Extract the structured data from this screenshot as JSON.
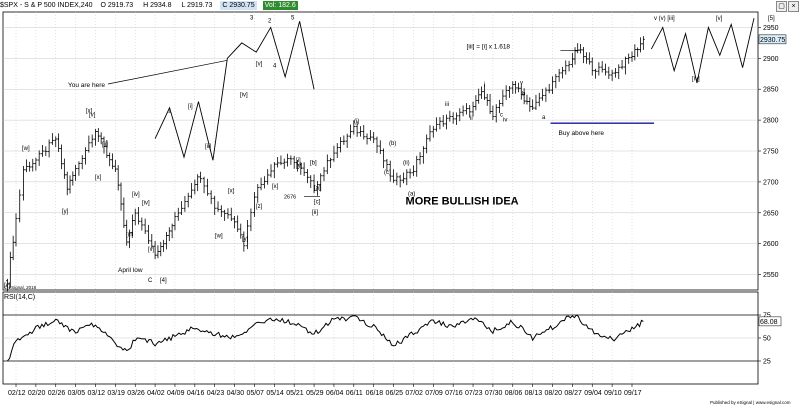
{
  "header": {
    "symbol": "$SPX - S & P 500 INDEX,240",
    "open": "O 2919.73",
    "high": "H 2934.8",
    "low": "L 2919.73",
    "close": "C 2930.75",
    "volume": "Vol: 182.6",
    "close_icon": "close-icon",
    "collapse_icon": "collapse-icon"
  },
  "colors": {
    "bar": "#000000",
    "buy_line": "#1a1aa0",
    "close_box": "#cfe3f5",
    "vol_box": "#2e8b2e",
    "last_price_box": "#d9eefc",
    "grid": "#c8c8c8"
  },
  "chart_data": [
    {
      "type": "ohlc",
      "title": "$SPX - S & P 500 INDEX,240",
      "x_tick_labels": [
        "02/12",
        "02/20",
        "02/26",
        "03/05",
        "03/12",
        "03/19",
        "03/26",
        "04/02",
        "04/09",
        "04/16",
        "04/23",
        "04/30",
        "05/07",
        "05/14",
        "05/21",
        "05/29",
        "06/04",
        "06/11",
        "06/18",
        "06/25",
        "07/02",
        "07/09",
        "07/16",
        "07/23",
        "07/30",
        "08/06",
        "08/13",
        "08/20",
        "08/27",
        "09/04",
        "09/10",
        "09/17"
      ],
      "y_ticks": [
        2550,
        2600,
        2650,
        2700,
        2750,
        2800,
        2850,
        2900,
        2950
      ],
      "ylim": [
        2525,
        2975
      ],
      "last_price": "2930.75",
      "series_close_approx": [
        {
          "date": "02/09",
          "value": 2540
        },
        {
          "date": "02/12",
          "value": 2640
        },
        {
          "date": "02/15",
          "value": 2720
        },
        {
          "date": "02/20",
          "value": 2735
        },
        {
          "date": "02/26",
          "value": 2770
        },
        {
          "date": "03/01",
          "value": 2690
        },
        {
          "date": "03/05",
          "value": 2720
        },
        {
          "date": "03/12",
          "value": 2785
        },
        {
          "date": "03/16",
          "value": 2745
        },
        {
          "date": "03/19",
          "value": 2720
        },
        {
          "date": "03/23",
          "value": 2600
        },
        {
          "date": "03/26",
          "value": 2650
        },
        {
          "date": "04/02",
          "value": 2585
        },
        {
          "date": "04/06",
          "value": 2610
        },
        {
          "date": "04/09",
          "value": 2640
        },
        {
          "date": "04/16",
          "value": 2700
        },
        {
          "date": "04/18",
          "value": 2710
        },
        {
          "date": "04/23",
          "value": 2660
        },
        {
          "date": "04/30",
          "value": 2640
        },
        {
          "date": "05/03",
          "value": 2600
        },
        {
          "date": "05/07",
          "value": 2680
        },
        {
          "date": "05/14",
          "value": 2730
        },
        {
          "date": "05/21",
          "value": 2735
        },
        {
          "date": "05/29",
          "value": 2690
        },
        {
          "date": "06/04",
          "value": 2750
        },
        {
          "date": "06/11",
          "value": 2785
        },
        {
          "date": "06/18",
          "value": 2770
        },
        {
          "date": "06/25",
          "value": 2700
        },
        {
          "date": "07/02",
          "value": 2720
        },
        {
          "date": "07/09",
          "value": 2790
        },
        {
          "date": "07/16",
          "value": 2805
        },
        {
          "date": "07/23",
          "value": 2820
        },
        {
          "date": "07/26",
          "value": 2845
        },
        {
          "date": "07/30",
          "value": 2810
        },
        {
          "date": "08/06",
          "value": 2860
        },
        {
          "date": "08/10",
          "value": 2835
        },
        {
          "date": "08/13",
          "value": 2820
        },
        {
          "date": "08/20",
          "value": 2860
        },
        {
          "date": "08/27",
          "value": 2900
        },
        {
          "date": "08/29",
          "value": 2915
        },
        {
          "date": "09/04",
          "value": 2885
        },
        {
          "date": "09/10",
          "value": 2875
        },
        {
          "date": "09/17",
          "value": 2905
        },
        {
          "date": "09/21",
          "value": 2930
        }
      ],
      "annotations": {
        "main_text": "MORE BULLISH IDEA",
        "you_are_here": "You are here",
        "buy_above_here": "Buy above here",
        "fib_text": "[iii] = [i] x 1.618",
        "april_low": "April low",
        "value_2676": "2676",
        "wave_labels": [
          "[v]",
          "[w]",
          "[y]",
          "[x]",
          "[x]",
          "[ii]",
          "[iii]",
          "[iv]",
          "[iv]",
          "[v]",
          "[v]",
          "C",
          "[4]",
          "[iv]",
          "[v]",
          "[i]",
          "[ii]",
          "[w]",
          "[x]",
          "[y]",
          "[z]",
          "[x]",
          "[y]",
          "2",
          "1",
          "[a]",
          "[b]",
          "[c]",
          "[i]",
          "[ii]",
          "(i)",
          "(ii)",
          "(a)",
          "(b)",
          "(c)",
          "i",
          "ii",
          "iii",
          "iv",
          "v",
          "a",
          "b",
          "c",
          "v (v) [iii]",
          "[iv]",
          "[v]",
          "3",
          "4",
          "5",
          "[5]"
        ]
      }
    },
    {
      "type": "line",
      "title": "RSI(14,C)",
      "y_ticks": [
        25,
        50,
        75
      ],
      "ylim": [
        0,
        100
      ],
      "last_value": "68.08",
      "series_approx": [
        {
          "date": "02/09",
          "value": 25
        },
        {
          "date": "02/12",
          "value": 48
        },
        {
          "date": "02/20",
          "value": 60
        },
        {
          "date": "02/26",
          "value": 68
        },
        {
          "date": "03/05",
          "value": 56
        },
        {
          "date": "03/12",
          "value": 66
        },
        {
          "date": "03/19",
          "value": 45
        },
        {
          "date": "03/23",
          "value": 34
        },
        {
          "date": "03/26",
          "value": 50
        },
        {
          "date": "04/02",
          "value": 44
        },
        {
          "date": "04/09",
          "value": 52
        },
        {
          "date": "04/16",
          "value": 62
        },
        {
          "date": "04/23",
          "value": 54
        },
        {
          "date": "04/30",
          "value": 50
        },
        {
          "date": "05/07",
          "value": 65
        },
        {
          "date": "05/14",
          "value": 70
        },
        {
          "date": "05/21",
          "value": 66
        },
        {
          "date": "05/29",
          "value": 54
        },
        {
          "date": "06/04",
          "value": 70
        },
        {
          "date": "06/11",
          "value": 72
        },
        {
          "date": "06/18",
          "value": 62
        },
        {
          "date": "06/25",
          "value": 42
        },
        {
          "date": "07/02",
          "value": 55
        },
        {
          "date": "07/09",
          "value": 68
        },
        {
          "date": "07/16",
          "value": 62
        },
        {
          "date": "07/23",
          "value": 72
        },
        {
          "date": "07/30",
          "value": 58
        },
        {
          "date": "08/06",
          "value": 68
        },
        {
          "date": "08/13",
          "value": 50
        },
        {
          "date": "08/20",
          "value": 62
        },
        {
          "date": "08/27",
          "value": 76
        },
        {
          "date": "09/04",
          "value": 58
        },
        {
          "date": "09/10",
          "value": 48
        },
        {
          "date": "09/17",
          "value": 60
        },
        {
          "date": "09/21",
          "value": 68
        }
      ]
    }
  ],
  "projection_path": {
    "left_points": [
      2770,
      2820,
      2740,
      2830,
      2735,
      2900,
      2925,
      2910,
      2950,
      2870,
      2960,
      2850
    ],
    "right_points": [
      2915,
      2950,
      2880,
      2940,
      2860,
      2950,
      2905,
      2955,
      2885,
      2965
    ]
  },
  "footer": {
    "copyright": "© eSignal, 2018",
    "published": "Published by eSignal | www.esignal.com"
  }
}
